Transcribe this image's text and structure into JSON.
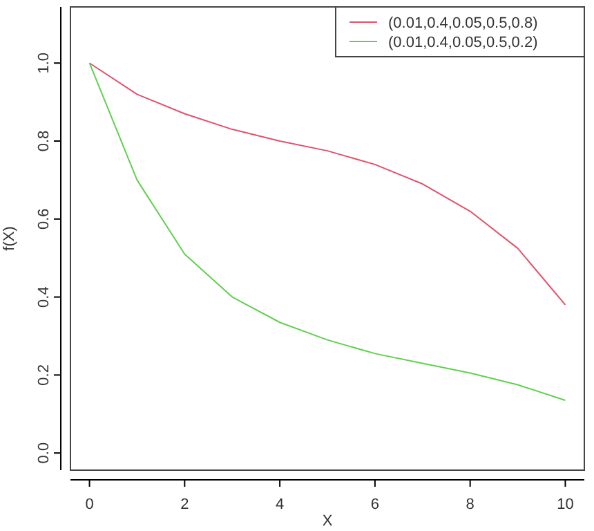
{
  "chart_data": {
    "type": "line",
    "xlabel": "X",
    "ylabel": "f(X)",
    "x": [
      0,
      1,
      2,
      3,
      4,
      5,
      6,
      7,
      8,
      9,
      10
    ],
    "series": [
      {
        "name": "(0.01,0.4,0.05,0.5,0.8)",
        "color": "#df536b",
        "values": [
          1,
          0.92,
          0.87,
          0.83,
          0.8,
          0.775,
          0.74,
          0.69,
          0.62,
          0.525,
          0.38
        ]
      },
      {
        "name": "(0.01,0.4,0.05,0.5,0.2)",
        "color": "#61d04f",
        "values": [
          1,
          0.7,
          0.51,
          0.4,
          0.335,
          0.29,
          0.255,
          0.23,
          0.205,
          0.175,
          0.135
        ]
      }
    ],
    "xlim": [
      -0.4,
      10.4
    ],
    "ylim": [
      -0.044,
      1.144
    ],
    "xticks": [
      0,
      2,
      4,
      6,
      8,
      10
    ],
    "yticks": [
      {
        "value": 0,
        "label": "0.0"
      },
      {
        "value": 0.2,
        "label": "0.2"
      },
      {
        "value": 0.4,
        "label": "0.4"
      },
      {
        "value": 0.6,
        "label": "0.6"
      },
      {
        "value": 0.8,
        "label": "0.8"
      },
      {
        "value": 1,
        "label": "1.0"
      }
    ],
    "legend": "top right",
    "grid": false,
    "marker": "none",
    "line_style": "solid"
  }
}
